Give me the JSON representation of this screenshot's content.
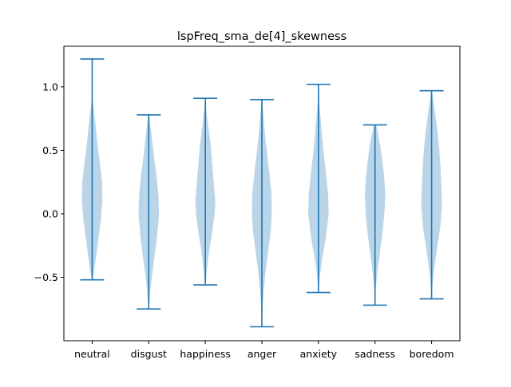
{
  "chart_data": {
    "type": "violin",
    "title": "lspFreq_sma_de[4]_skewness",
    "xlabel": "",
    "ylabel": "",
    "categories": [
      "neutral",
      "disgust",
      "happiness",
      "anger",
      "anxiety",
      "sadness",
      "boredom"
    ],
    "ylim": [
      -1.0,
      1.32
    ],
    "yticks": [
      -0.5,
      0.0,
      0.5,
      1.0
    ],
    "ytick_labels": [
      "−0.5",
      "0.0",
      "0.5",
      "1.0"
    ],
    "grid": false,
    "colors": {
      "body": "#a6c9e2",
      "line": "#1f77b4"
    },
    "series": [
      {
        "min": -0.52,
        "max": 1.22,
        "profile": [
          [
            -0.52,
            0.01
          ],
          [
            -0.45,
            0.06
          ],
          [
            -0.35,
            0.12
          ],
          [
            -0.2,
            0.2
          ],
          [
            -0.05,
            0.28
          ],
          [
            0.1,
            0.33
          ],
          [
            0.25,
            0.32
          ],
          [
            0.4,
            0.25
          ],
          [
            0.55,
            0.17
          ],
          [
            0.7,
            0.11
          ],
          [
            0.82,
            0.05
          ],
          [
            0.9,
            0.015
          ],
          [
            1.0,
            0.004
          ],
          [
            1.22,
            0.001
          ]
        ]
      },
      {
        "min": -0.75,
        "max": 0.78,
        "profile": [
          [
            -0.75,
            0.01
          ],
          [
            -0.6,
            0.05
          ],
          [
            -0.4,
            0.15
          ],
          [
            -0.2,
            0.26
          ],
          [
            0.0,
            0.33
          ],
          [
            0.15,
            0.31
          ],
          [
            0.3,
            0.25
          ],
          [
            0.45,
            0.17
          ],
          [
            0.6,
            0.1
          ],
          [
            0.7,
            0.05
          ],
          [
            0.78,
            0.01
          ]
        ]
      },
      {
        "min": -0.56,
        "max": 0.91,
        "profile": [
          [
            -0.56,
            0.01
          ],
          [
            -0.45,
            0.05
          ],
          [
            -0.3,
            0.12
          ],
          [
            -0.15,
            0.22
          ],
          [
            0.0,
            0.3
          ],
          [
            0.1,
            0.32
          ],
          [
            0.25,
            0.27
          ],
          [
            0.4,
            0.22
          ],
          [
            0.55,
            0.17
          ],
          [
            0.7,
            0.09
          ],
          [
            0.8,
            0.04
          ],
          [
            0.91,
            0.005
          ]
        ]
      },
      {
        "min": -0.89,
        "max": 0.9,
        "profile": [
          [
            -0.89,
            0.005
          ],
          [
            -0.75,
            0.02
          ],
          [
            -0.6,
            0.06
          ],
          [
            -0.45,
            0.12
          ],
          [
            -0.3,
            0.2
          ],
          [
            -0.15,
            0.28
          ],
          [
            0.0,
            0.32
          ],
          [
            0.15,
            0.31
          ],
          [
            0.3,
            0.25
          ],
          [
            0.45,
            0.18
          ],
          [
            0.6,
            0.11
          ],
          [
            0.75,
            0.06
          ],
          [
            0.9,
            0.01
          ]
        ]
      },
      {
        "min": -0.62,
        "max": 1.02,
        "profile": [
          [
            -0.62,
            0.005
          ],
          [
            -0.5,
            0.04
          ],
          [
            -0.35,
            0.12
          ],
          [
            -0.2,
            0.23
          ],
          [
            0.0,
            0.33
          ],
          [
            0.15,
            0.31
          ],
          [
            0.3,
            0.25
          ],
          [
            0.45,
            0.18
          ],
          [
            0.6,
            0.12
          ],
          [
            0.75,
            0.07
          ],
          [
            0.85,
            0.03
          ],
          [
            0.95,
            0.01
          ],
          [
            1.02,
            0.003
          ]
        ]
      },
      {
        "min": -0.72,
        "max": 0.7,
        "profile": [
          [
            -0.72,
            0.005
          ],
          [
            -0.6,
            0.02
          ],
          [
            -0.45,
            0.08
          ],
          [
            -0.3,
            0.16
          ],
          [
            -0.15,
            0.24
          ],
          [
            0.0,
            0.3
          ],
          [
            0.15,
            0.33
          ],
          [
            0.3,
            0.29
          ],
          [
            0.45,
            0.22
          ],
          [
            0.55,
            0.16
          ],
          [
            0.65,
            0.08
          ],
          [
            0.7,
            0.04
          ]
        ]
      },
      {
        "min": -0.67,
        "max": 0.97,
        "profile": [
          [
            -0.67,
            0.005
          ],
          [
            -0.55,
            0.03
          ],
          [
            -0.4,
            0.1
          ],
          [
            -0.25,
            0.19
          ],
          [
            -0.1,
            0.28
          ],
          [
            0.05,
            0.33
          ],
          [
            0.2,
            0.32
          ],
          [
            0.35,
            0.29
          ],
          [
            0.5,
            0.25
          ],
          [
            0.65,
            0.19
          ],
          [
            0.8,
            0.11
          ],
          [
            0.9,
            0.05
          ],
          [
            0.97,
            0.01
          ]
        ]
      }
    ]
  }
}
